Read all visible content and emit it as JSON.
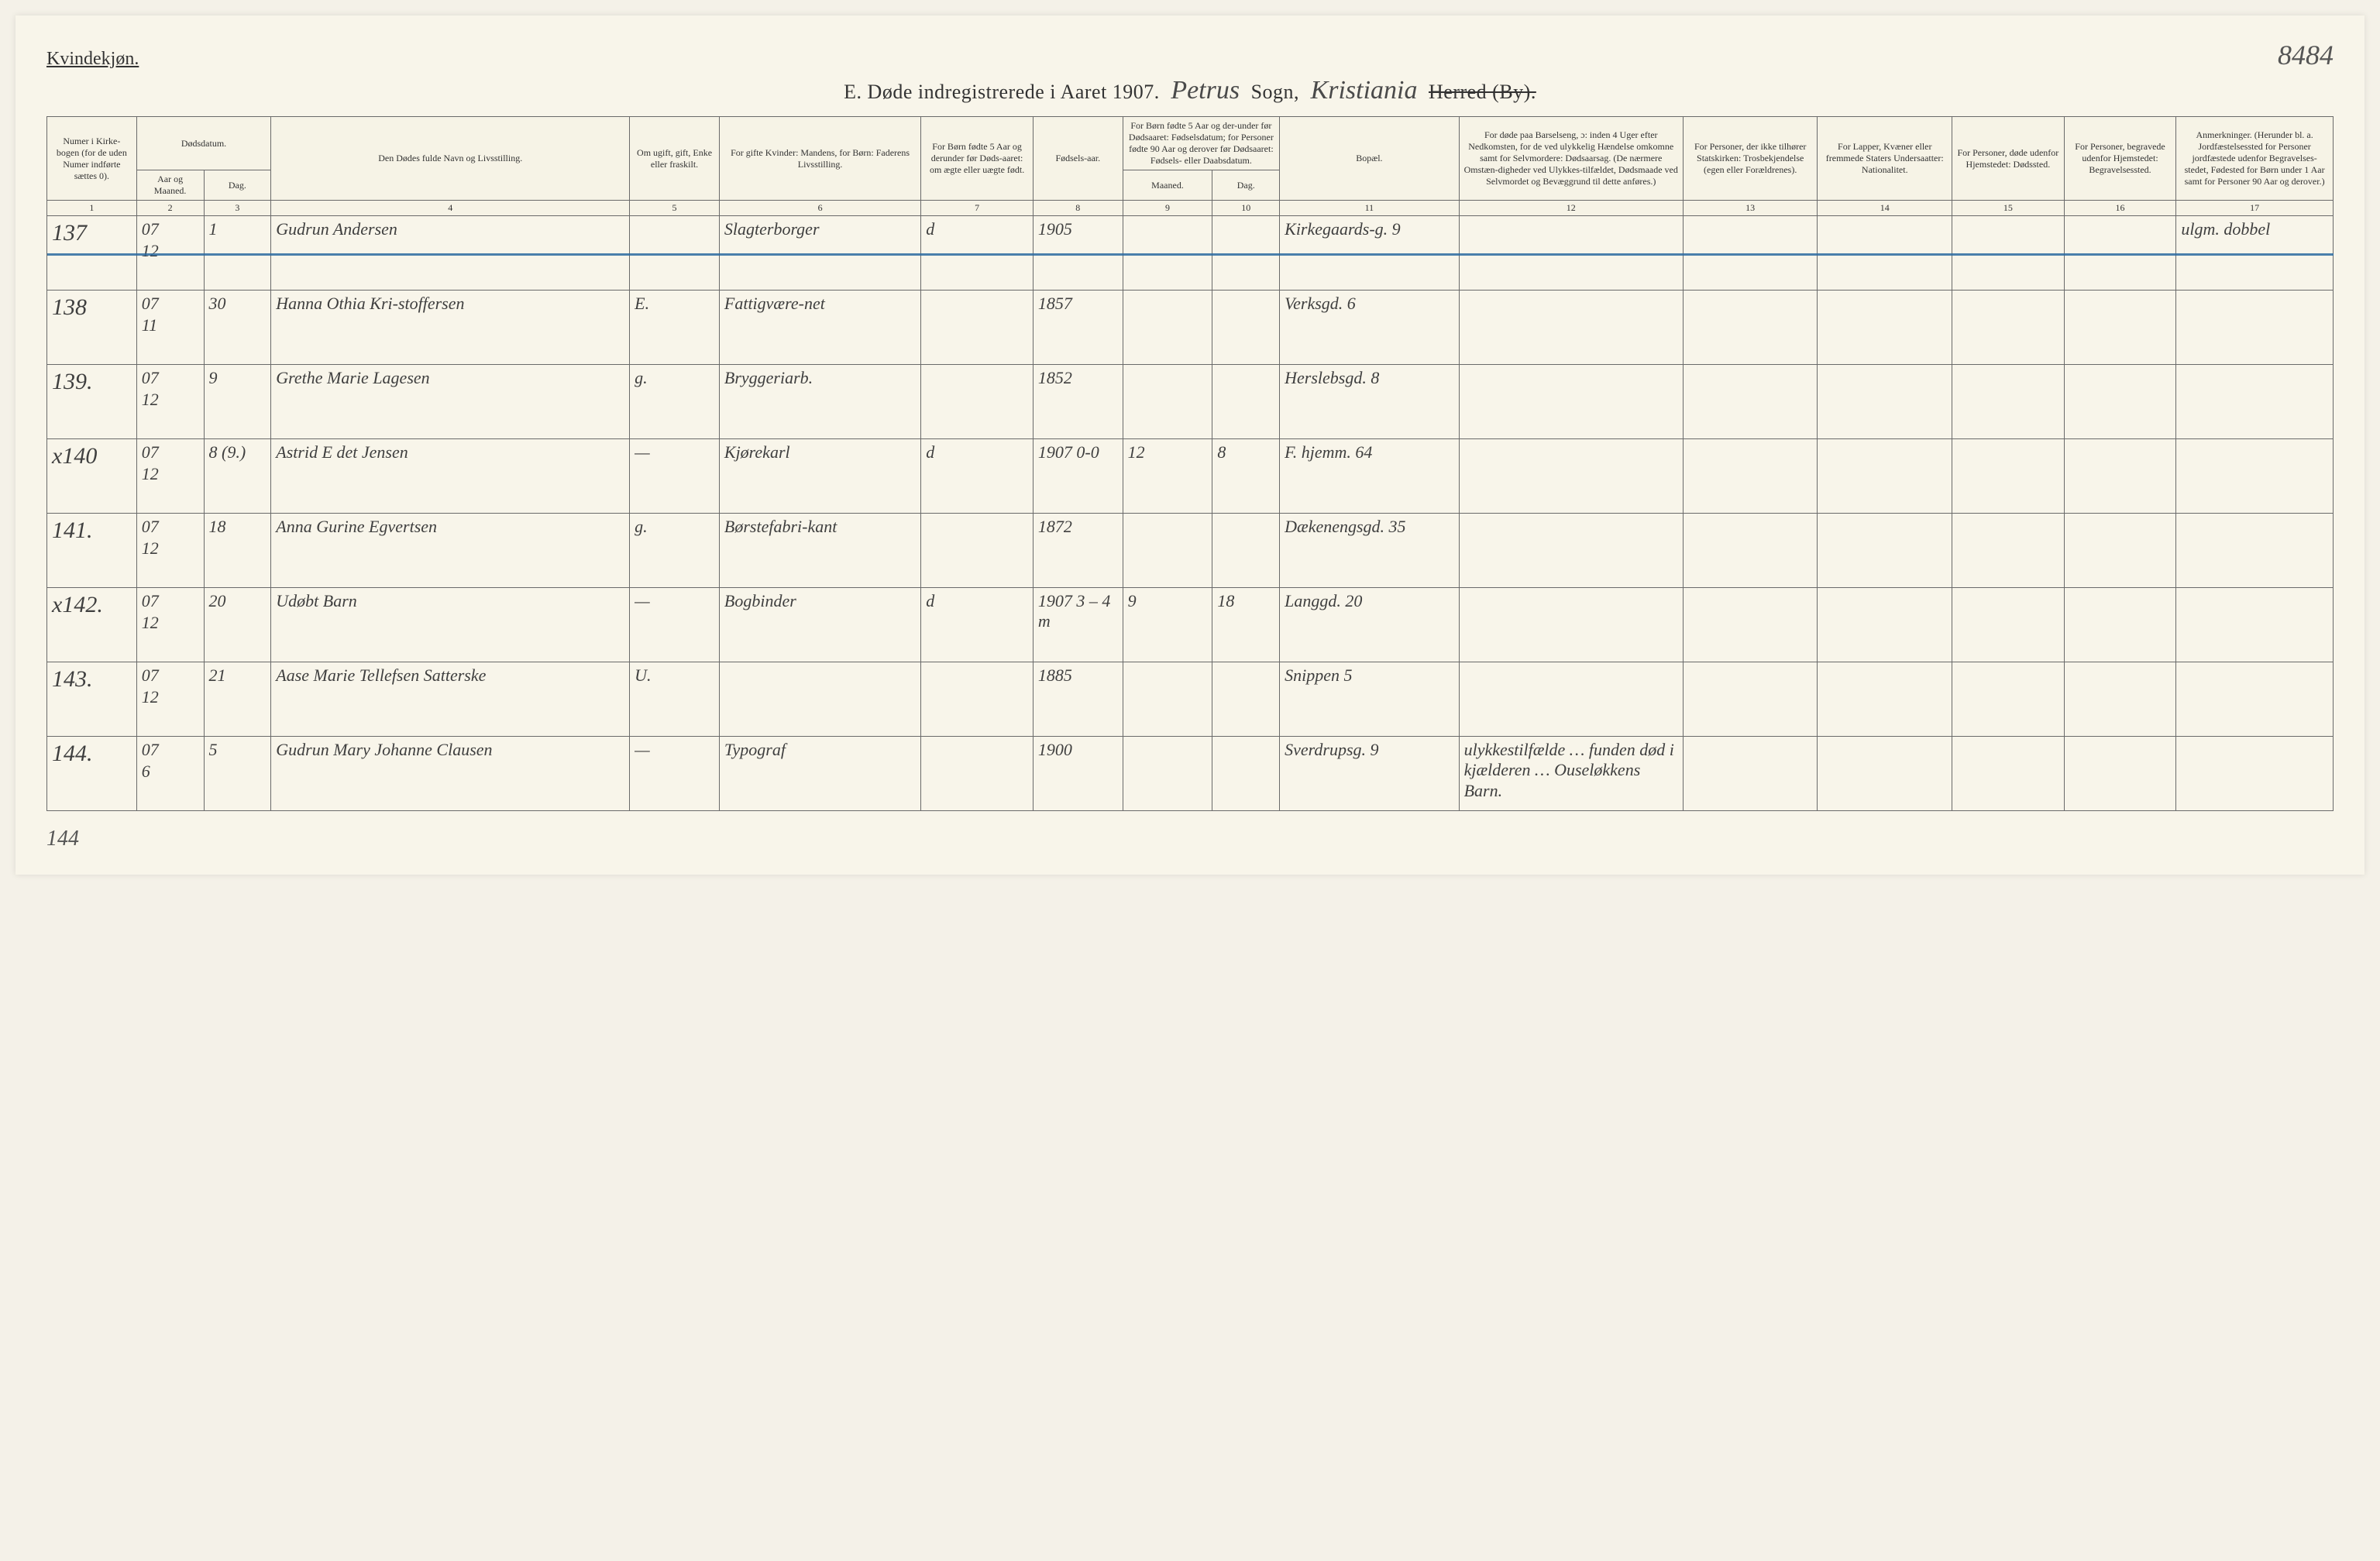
{
  "page": {
    "gender_label": "Kvindekjøn.",
    "page_number": "8484",
    "title_prefix": "E.  Døde indregistrerede i Aaret 1907.",
    "parish_script": "Petrus",
    "sogn_label": "Sogn,",
    "district_script": "Kristiania",
    "herred_label": "Herred (By).",
    "footer_mark": "144"
  },
  "colors": {
    "paper": "#f8f5ea",
    "ink": "#3a3a3a",
    "rule": "#6a6a6a",
    "strike": "#2b6aa0"
  },
  "headers": {
    "c1": "Numer i Kirke-bogen (for de uden Numer indførte sættes 0).",
    "c2": "Dødsdatum.",
    "c2a": "Aar og Maaned.",
    "c2b": "Dag.",
    "c4": "Den Dødes fulde Navn og Livsstilling.",
    "c5": "Om ugift, gift, Enke eller fraskilt.",
    "c6": "For gifte Kvinder: Mandens, for Børn: Faderens Livsstilling.",
    "c7": "For Børn fødte 5 Aar og derunder før Døds-aaret: om ægte eller uægte født.",
    "c8": "Fødsels-aar.",
    "c9_10": "For Børn fødte 5 Aar og der-under før Dødsaaret: Fødselsdatum; for Personer fødte 90 Aar og derover før Dødsaaret: Fødsels- eller Daabsdatum.",
    "c9": "Maaned.",
    "c10": "Dag.",
    "c11": "Bopæl.",
    "c12": "For døde paa Barselseng, ɔ: inden 4 Uger efter Nedkomsten, for de ved ulykkelig Hændelse omkomne samt for Selvmordere: Dødsaarsag. (De nærmere Omstæn-digheder ved Ulykkes-tilfældet, Dødsmaade ved Selvmordet og Bevæggrund til dette anføres.)",
    "c13": "For Personer, der ikke tilhører Statskirken: Trosbekjendelse (egen eller Forældrenes).",
    "c14": "For Lapper, Kvæner eller fremmede Staters Undersaatter: Nationalitet.",
    "c15": "For Personer, døde udenfor Hjemstedet: Dødssted.",
    "c16": "For Personer, begravede udenfor Hjemstedet: Begravelsessted.",
    "c17": "Anmerkninger. (Herunder bl. a. Jordfæstelsessted for Personer jordfæstede udenfor Begravelses-stedet, Fødested for Børn under 1 Aar samt for Personer 90 Aar og derover.)"
  },
  "colnums": [
    "1",
    "2",
    "3",
    "4",
    "5",
    "6",
    "7",
    "8",
    "9",
    "10",
    "11",
    "12",
    "13",
    "14",
    "15",
    "16",
    "17"
  ],
  "rows": [
    {
      "idx": "137",
      "aar": "07",
      "maaned": "12",
      "dag": "1",
      "navn": "Gudrun Andersen",
      "stand": "",
      "fader": "Slagterborger",
      "aegte": "d",
      "faar": "1905",
      "fm": "",
      "fd": "",
      "bopel": "Kirkegaards-g. 9",
      "aarsag": "",
      "tros": "",
      "nat": "",
      "dsted": "",
      "begr": "",
      "anm": "ulgm. dobbel",
      "struck": true
    },
    {
      "idx": "138",
      "aar": "07",
      "maaned": "11",
      "dag": "30",
      "navn": "Hanna Othia Kri-stoffersen",
      "stand": "E.",
      "fader": "Fattigvære-net",
      "aegte": "",
      "faar": "1857",
      "fm": "",
      "fd": "",
      "bopel": "Verksgd. 6",
      "aarsag": "",
      "tros": "",
      "nat": "",
      "dsted": "",
      "begr": "",
      "anm": ""
    },
    {
      "idx": "139.",
      "aar": "07",
      "maaned": "12",
      "dag": "9",
      "navn": "Grethe Marie Lagesen",
      "stand": "g.",
      "fader": "Bryggeriarb.",
      "aegte": "",
      "faar": "1852",
      "fm": "",
      "fd": "",
      "bopel": "Herslebsgd. 8",
      "aarsag": "",
      "tros": "",
      "nat": "",
      "dsted": "",
      "begr": "",
      "anm": ""
    },
    {
      "idx": "x140",
      "aar": "07",
      "maaned": "12",
      "dag": "8 (9.)",
      "navn": "Astrid E det Jensen",
      "stand": "—",
      "fader": "Kjørekarl",
      "aegte": "d",
      "faar": "1907  0-0",
      "fm": "12",
      "fd": "8",
      "bopel": "F. hjemm. 64",
      "aarsag": "",
      "tros": "",
      "nat": "",
      "dsted": "",
      "begr": "",
      "anm": ""
    },
    {
      "idx": "141.",
      "aar": "07",
      "maaned": "12",
      "dag": "18",
      "navn": "Anna Gurine Egvertsen",
      "stand": "g.",
      "fader": "Børstefabri-kant",
      "aegte": "",
      "faar": "1872",
      "fm": "",
      "fd": "",
      "bopel": "Dækenengsgd. 35",
      "aarsag": "",
      "tros": "",
      "nat": "",
      "dsted": "",
      "begr": "",
      "anm": ""
    },
    {
      "idx": "x142.",
      "aar": "07",
      "maaned": "12",
      "dag": "20",
      "navn": "Udøbt Barn",
      "stand": "—",
      "fader": "Bogbinder",
      "aegte": "d",
      "faar": "1907  3 – 4 m",
      "fm": "9",
      "fd": "18",
      "bopel": "Langgd. 20",
      "aarsag": "",
      "tros": "",
      "nat": "",
      "dsted": "",
      "begr": "",
      "anm": ""
    },
    {
      "idx": "143.",
      "aar": "07",
      "maaned": "12",
      "dag": "21",
      "navn": "Aase Marie Tellefsen Satterske",
      "stand": "U.",
      "fader": "",
      "aegte": "",
      "faar": "1885",
      "fm": "",
      "fd": "",
      "bopel": "Snippen 5",
      "aarsag": "",
      "tros": "",
      "nat": "",
      "dsted": "",
      "begr": "",
      "anm": ""
    },
    {
      "idx": "144.",
      "aar": "07",
      "maaned": "6",
      "dag": "5",
      "navn": "Gudrun Mary Johanne Clausen",
      "stand": "—",
      "fader": "Typograf",
      "aegte": "",
      "faar": "1900",
      "fm": "",
      "fd": "",
      "bopel": "Sverdrupsg. 9",
      "aarsag": "ulykkestilfælde … funden død i kjælderen …  Ouseløkkens Barn.",
      "tros": "",
      "nat": "",
      "dsted": "",
      "begr": "",
      "anm": ""
    }
  ]
}
